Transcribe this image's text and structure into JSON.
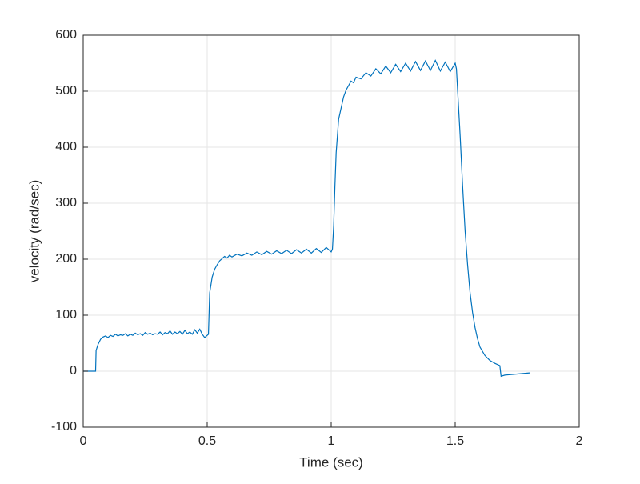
{
  "chart_data": {
    "type": "line",
    "xlabel": "Time (sec)",
    "ylabel": "velocity (rad/sec)",
    "xlim": [
      0,
      2
    ],
    "xticks": [
      0,
      0.5,
      1,
      1.5,
      2
    ],
    "ylim": [
      -100,
      600
    ],
    "yticks": [
      -100,
      0,
      100,
      200,
      300,
      400,
      500,
      600
    ],
    "grid": true,
    "series": [
      {
        "color": "#0072bd",
        "x": [
          0,
          0.05,
          0.052,
          0.06,
          0.07,
          0.08,
          0.09,
          0.1,
          0.11,
          0.12,
          0.13,
          0.14,
          0.15,
          0.16,
          0.17,
          0.18,
          0.19,
          0.2,
          0.21,
          0.22,
          0.23,
          0.24,
          0.25,
          0.26,
          0.27,
          0.28,
          0.29,
          0.3,
          0.31,
          0.32,
          0.33,
          0.34,
          0.35,
          0.36,
          0.37,
          0.38,
          0.39,
          0.4,
          0.41,
          0.42,
          0.43,
          0.44,
          0.45,
          0.46,
          0.47,
          0.48,
          0.49,
          0.5,
          0.505,
          0.51,
          0.52,
          0.53,
          0.54,
          0.55,
          0.56,
          0.57,
          0.58,
          0.59,
          0.6,
          0.62,
          0.64,
          0.66,
          0.68,
          0.7,
          0.72,
          0.74,
          0.76,
          0.78,
          0.8,
          0.82,
          0.84,
          0.86,
          0.88,
          0.9,
          0.92,
          0.94,
          0.96,
          0.98,
          1.0,
          1.005,
          1.01,
          1.015,
          1.02,
          1.03,
          1.04,
          1.05,
          1.06,
          1.07,
          1.08,
          1.09,
          1.1,
          1.12,
          1.14,
          1.16,
          1.18,
          1.2,
          1.22,
          1.24,
          1.26,
          1.28,
          1.3,
          1.32,
          1.34,
          1.36,
          1.38,
          1.4,
          1.42,
          1.44,
          1.46,
          1.48,
          1.5,
          1.505,
          1.51,
          1.52,
          1.53,
          1.54,
          1.55,
          1.56,
          1.57,
          1.58,
          1.59,
          1.6,
          1.62,
          1.64,
          1.66,
          1.68,
          1.685,
          1.7,
          1.75,
          1.8
        ],
        "values": [
          0,
          0,
          37,
          48,
          57,
          61,
          63,
          60,
          64,
          62,
          66,
          63,
          65,
          64,
          67,
          63,
          66,
          64,
          68,
          65,
          67,
          64,
          69,
          66,
          68,
          65,
          67,
          66,
          70,
          65,
          69,
          67,
          72,
          66,
          70,
          67,
          71,
          66,
          73,
          67,
          70,
          66,
          74,
          68,
          75,
          66,
          60,
          64,
          66,
          140,
          168,
          182,
          190,
          197,
          201,
          205,
          202,
          207,
          204,
          209,
          206,
          211,
          207,
          213,
          208,
          214,
          209,
          215,
          210,
          216,
          210,
          217,
          211,
          218,
          211,
          219,
          212,
          221,
          213,
          218,
          260,
          330,
          390,
          450,
          470,
          490,
          502,
          510,
          518,
          515,
          525,
          522,
          533,
          527,
          540,
          531,
          545,
          533,
          548,
          535,
          550,
          536,
          553,
          537,
          554,
          537,
          555,
          536,
          552,
          535,
          550,
          540,
          500,
          420,
          330,
          250,
          190,
          140,
          105,
          78,
          58,
          43,
          28,
          19,
          14,
          10,
          -9,
          -7,
          -5,
          -3
        ]
      }
    ]
  }
}
